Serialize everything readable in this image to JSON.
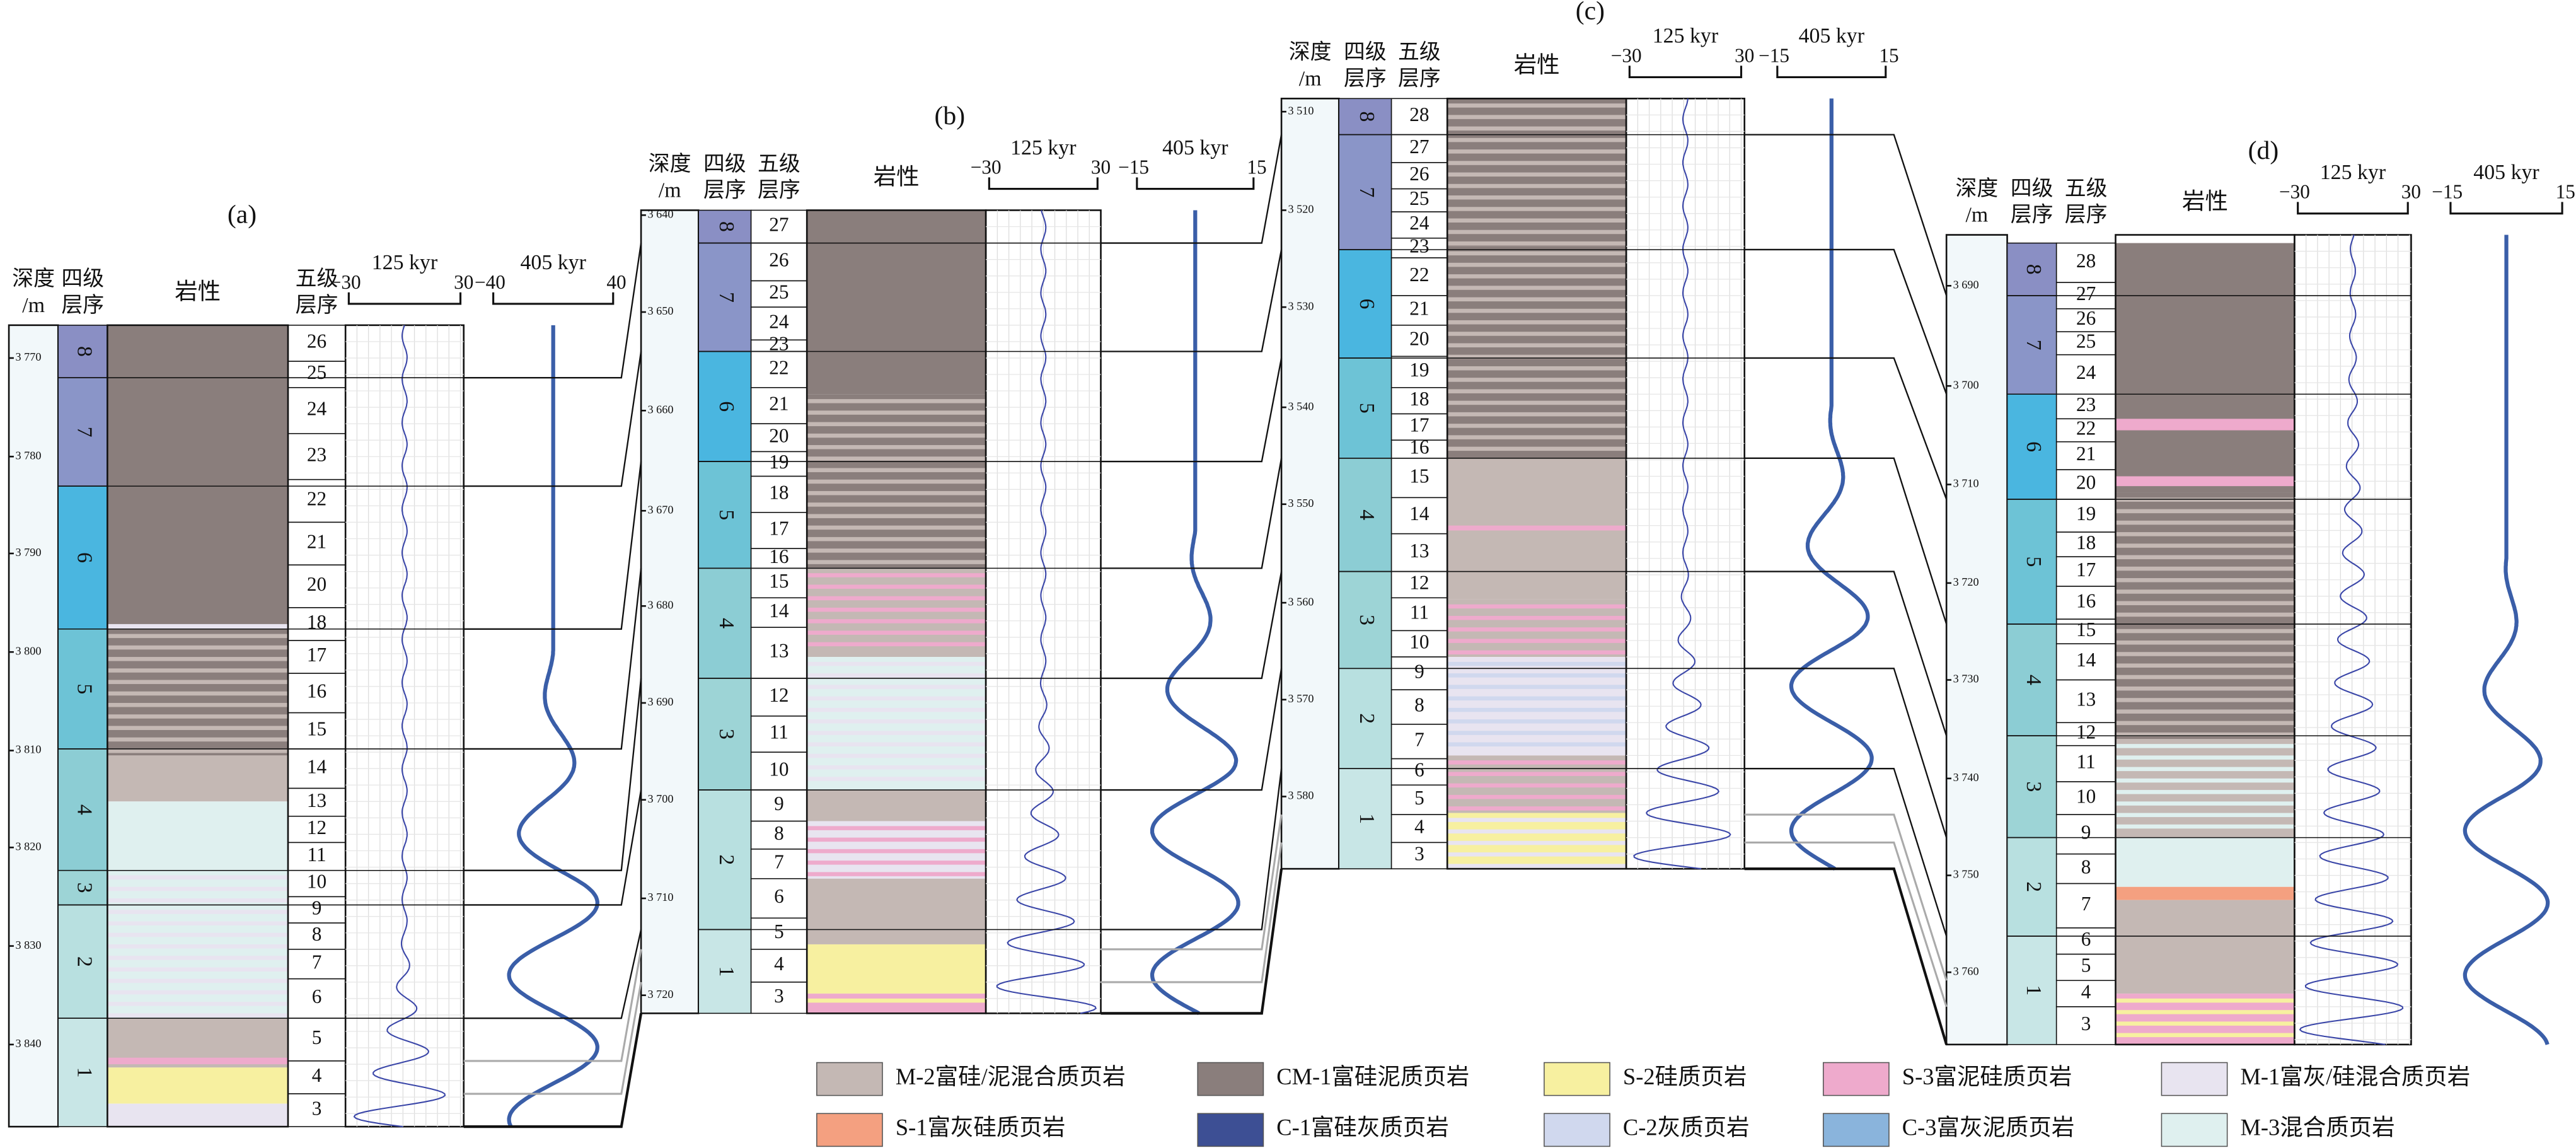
{
  "panels": [
    {
      "label": "(a)",
      "header": {
        "depth": [
          "深度",
          "/m"
        ],
        "fourth": [
          "四级",
          "层序"
        ],
        "fifth": [
          "五级",
          "层序"
        ],
        "lithology": "岩性",
        "kyr125": "125 kyr",
        "kyr405": "405 kyr",
        "scale125": [
          "−30",
          "30"
        ],
        "scale405": [
          "−40",
          "40"
        ]
      },
      "depth_ticks": [
        "3 770",
        "3 780",
        "3 790",
        "3 800",
        "3 810",
        "3 820",
        "3 830",
        "3 840"
      ],
      "fourth_order": [
        "8",
        "7",
        "6",
        "5",
        "4",
        "3",
        "2",
        "1"
      ],
      "fifth_order": [
        "26",
        "25",
        "24",
        "23",
        "22",
        "21",
        "20",
        "18",
        "17",
        "16",
        "15",
        "14",
        "13",
        "12",
        "11",
        "10",
        "9",
        "8",
        "7",
        "6",
        "5",
        "4",
        "3"
      ]
    },
    {
      "label": "(b)",
      "header": {
        "depth": [
          "深度",
          "/m"
        ],
        "fourth": [
          "四级",
          "层序"
        ],
        "fifth": [
          "五级",
          "层序"
        ],
        "lithology": "岩性",
        "kyr125": "125 kyr",
        "kyr405": "405 kyr",
        "scale125": [
          "−30",
          "30"
        ],
        "scale405": [
          "−15",
          "15"
        ]
      },
      "depth_ticks": [
        "3 640",
        "3 650",
        "3 660",
        "3 670",
        "3 680",
        "3 690",
        "3 700",
        "3 710",
        "3 720"
      ],
      "fourth_order": [
        "8",
        "7",
        "6",
        "5",
        "4",
        "3",
        "2",
        "1"
      ],
      "fifth_order": [
        "27",
        "26",
        "25",
        "24",
        "23",
        "22",
        "21",
        "20",
        "19",
        "18",
        "17",
        "16",
        "15",
        "14",
        "13",
        "12",
        "11",
        "10",
        "9",
        "8",
        "7",
        "6",
        "5",
        "4",
        "3"
      ]
    },
    {
      "label": "(c)",
      "header": {
        "depth": [
          "深度",
          "/m"
        ],
        "fourth": [
          "四级",
          "层序"
        ],
        "fifth": [
          "五级",
          "层序"
        ],
        "lithology": "岩性",
        "kyr125": "125 kyr",
        "kyr405": "405 kyr",
        "scale125": [
          "−30",
          "30"
        ],
        "scale405": [
          "−15",
          "15"
        ]
      },
      "depth_ticks": [
        "3 510",
        "3 520",
        "3 530",
        "3 540",
        "3 550",
        "3 560",
        "3 570",
        "3 580"
      ],
      "fourth_order": [
        "8",
        "7",
        "6",
        "5",
        "4",
        "3",
        "2",
        "1"
      ],
      "fifth_order": [
        "28",
        "27",
        "26",
        "25",
        "24",
        "23",
        "22",
        "21",
        "20",
        "19",
        "18",
        "17",
        "16",
        "15",
        "14",
        "13",
        "12",
        "11",
        "10",
        "9",
        "8",
        "7",
        "6",
        "5",
        "4",
        "3"
      ]
    },
    {
      "label": "(d)",
      "header": {
        "depth": [
          "深度",
          "/m"
        ],
        "fourth": [
          "四级",
          "层序"
        ],
        "fifth": [
          "五级",
          "层序"
        ],
        "lithology": "岩性",
        "kyr125": "125 kyr",
        "kyr405": "405 kyr",
        "scale125": [
          "−30",
          "30"
        ],
        "scale405": [
          "−15",
          "15"
        ]
      },
      "depth_ticks": [
        "3 690",
        "3 700",
        "3 710",
        "3 720",
        "3 730",
        "3 740",
        "3 750",
        "3 760"
      ],
      "fourth_order": [
        "8",
        "7",
        "6",
        "5",
        "4",
        "3",
        "2",
        "1"
      ],
      "fifth_order": [
        "28",
        "27",
        "26",
        "25",
        "24",
        "23",
        "22",
        "21",
        "20",
        "19",
        "18",
        "17",
        "16",
        "15",
        "14",
        "13",
        "12",
        "11",
        "10",
        "9",
        "8",
        "7",
        "6",
        "5",
        "4",
        "3"
      ]
    }
  ],
  "legend": [
    "M-2富硅/泥混合质页岩",
    "CM-1富硅泥质页岩",
    "S-2硅质页岩",
    "S-3富泥硅质页岩",
    "M-1富灰/硅混合质页岩",
    "S-1富灰硅质页岩",
    "C-1富硅灰质页岩",
    "C-2灰质页岩",
    "C-3富灰泥质页岩",
    "M-3混合质页岩"
  ]
}
